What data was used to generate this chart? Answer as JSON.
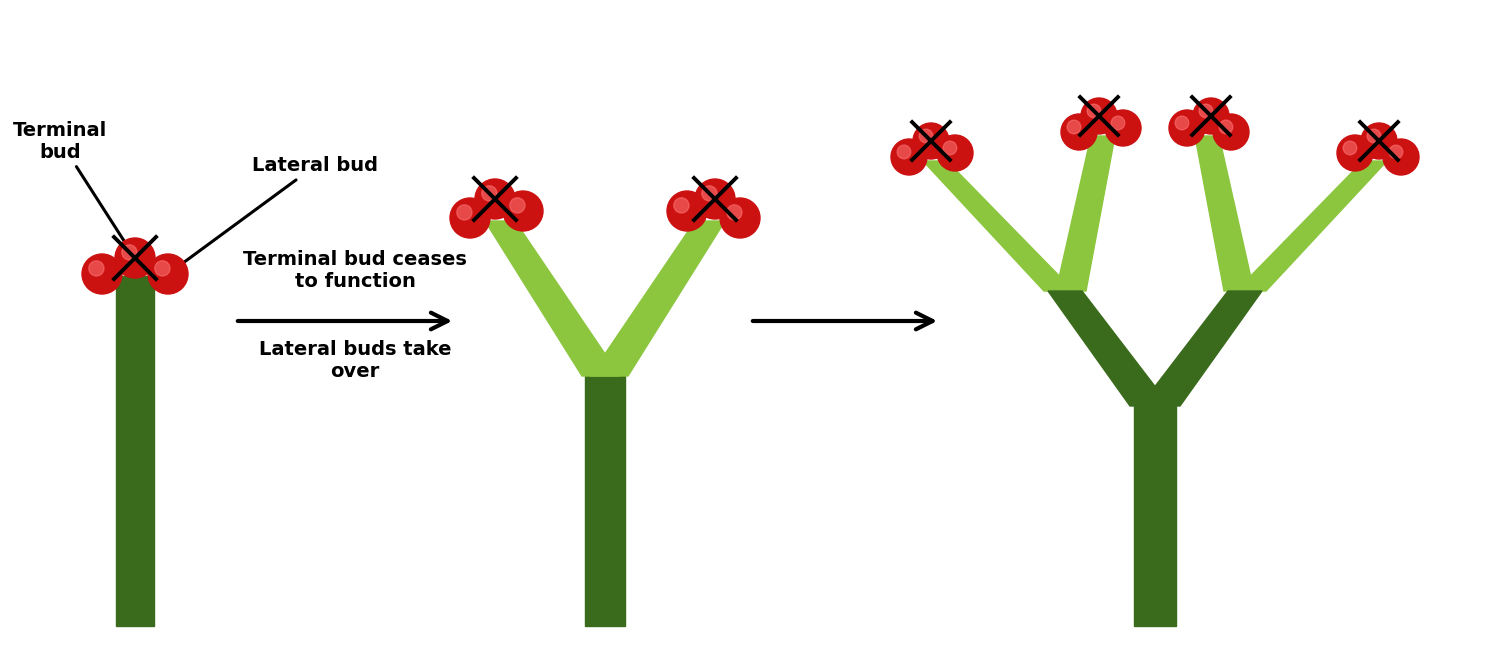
{
  "bg_color": "#ffffff",
  "dark_green": "#3a6b1c",
  "light_green": "#8cc63f",
  "red": "#cc1111",
  "black": "#000000",
  "label_fontsize": 14,
  "fig_w": 15.0,
  "fig_h": 6.56,
  "xlim": [
    0,
    15
  ],
  "ylim": [
    0,
    6.56
  ]
}
